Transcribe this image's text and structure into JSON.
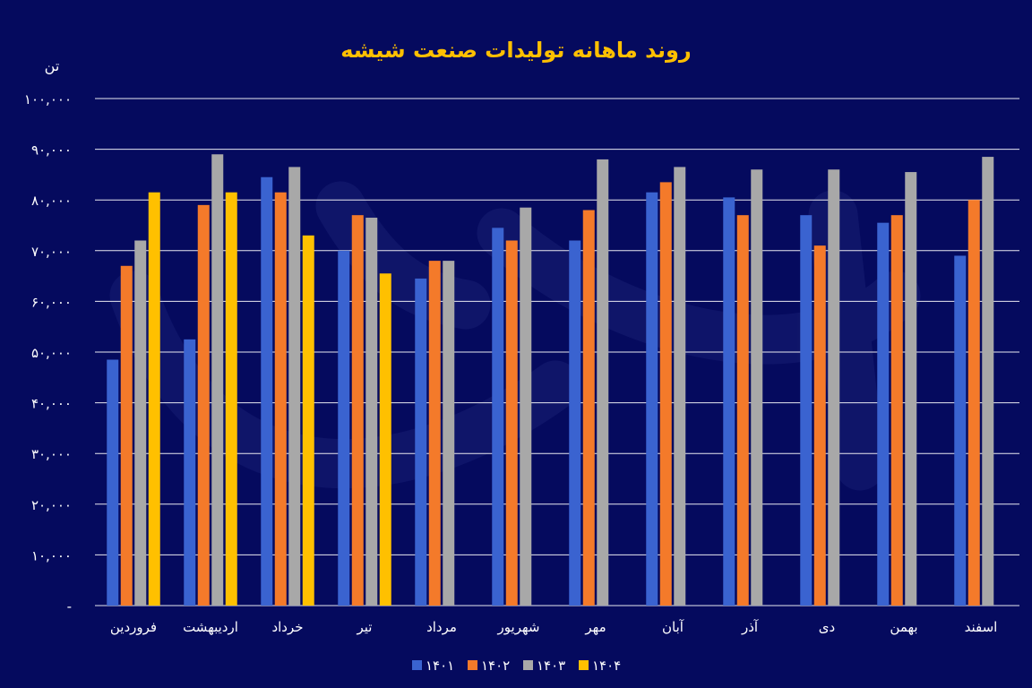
{
  "colors": {
    "background": "#050a5e",
    "title": "#ffc000",
    "text": "#ffffff",
    "grid": "#e8e8f0",
    "s1401": "#3a63d0",
    "s1402": "#f47a2a",
    "s1403": "#a8a8a8",
    "s1404": "#ffc000"
  },
  "chart_data": {
    "type": "bar",
    "title": "روند ماهانه تولیدات صنعت شیشه",
    "ylabel": "تن",
    "xlabel": "",
    "ylim": [
      0,
      100000
    ],
    "yticks": [
      {
        "value": 0,
        "label": "-"
      },
      {
        "value": 10000,
        "label": "۱۰,۰۰۰"
      },
      {
        "value": 20000,
        "label": "۲۰,۰۰۰"
      },
      {
        "value": 30000,
        "label": "۳۰,۰۰۰"
      },
      {
        "value": 40000,
        "label": "۴۰,۰۰۰"
      },
      {
        "value": 50000,
        "label": "۵۰,۰۰۰"
      },
      {
        "value": 60000,
        "label": "۶۰,۰۰۰"
      },
      {
        "value": 70000,
        "label": "۷۰,۰۰۰"
      },
      {
        "value": 80000,
        "label": "۸۰,۰۰۰"
      },
      {
        "value": 90000,
        "label": "۹۰,۰۰۰"
      },
      {
        "value": 100000,
        "label": "۱۰۰,۰۰۰"
      }
    ],
    "categories": [
      "فروردین",
      "اردیبهشت",
      "خرداد",
      "تیر",
      "مرداد",
      "شهریور",
      "مهر",
      "آبان",
      "آذر",
      "دی",
      "بهمن",
      "اسفند"
    ],
    "series": [
      {
        "name": "۱۴۰۱",
        "color_key": "s1401",
        "values": [
          48500,
          52500,
          84500,
          70000,
          64500,
          74500,
          72000,
          81500,
          80500,
          77000,
          75500,
          69000
        ]
      },
      {
        "name": "۱۴۰۲",
        "color_key": "s1402",
        "values": [
          67000,
          79000,
          81500,
          77000,
          68000,
          72000,
          78000,
          83500,
          77000,
          71000,
          77000,
          80000
        ]
      },
      {
        "name": "۱۴۰۳",
        "color_key": "s1403",
        "values": [
          72000,
          89000,
          86500,
          76500,
          68000,
          78500,
          88000,
          86500,
          86000,
          86000,
          85500,
          88500
        ]
      },
      {
        "name": "۱۴۰۴",
        "color_key": "s1404",
        "values": [
          81500,
          81500,
          73000,
          65500,
          null,
          null,
          null,
          null,
          null,
          null,
          null,
          null
        ]
      }
    ],
    "legend_position": "bottom-center",
    "grid": true
  }
}
